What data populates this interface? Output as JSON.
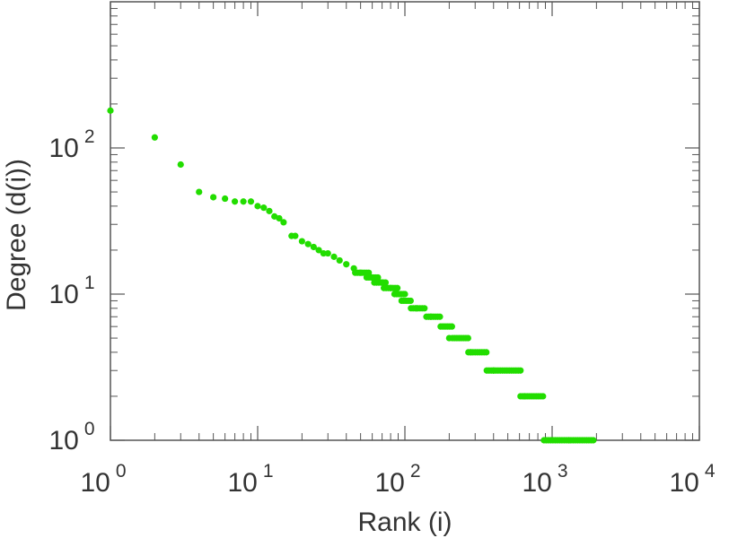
{
  "chart_data": {
    "type": "scatter",
    "xscale": "log",
    "yscale": "log",
    "xlim": [
      1,
      10000
    ],
    "ylim": [
      1,
      1000
    ],
    "xlabel": "Rank (i)",
    "ylabel": "Degree (d(i))",
    "x_ticks": [
      {
        "value": 1,
        "base": "10",
        "exp": "0"
      },
      {
        "value": 10,
        "base": "10",
        "exp": "1"
      },
      {
        "value": 100,
        "base": "10",
        "exp": "2"
      },
      {
        "value": 1000,
        "base": "10",
        "exp": "3"
      },
      {
        "value": 10000,
        "base": "10",
        "exp": "4"
      }
    ],
    "y_ticks": [
      {
        "value": 1,
        "base": "10",
        "exp": "0"
      },
      {
        "value": 10,
        "base": "10",
        "exp": "1"
      },
      {
        "value": 100,
        "base": "10",
        "exp": "2"
      }
    ],
    "marker_color": "#22dd00",
    "points": [
      [
        1,
        180
      ],
      [
        2,
        118
      ],
      [
        3,
        77
      ],
      [
        4,
        50
      ],
      [
        5,
        46
      ],
      [
        6,
        45
      ],
      [
        7,
        43
      ],
      [
        8,
        43
      ],
      [
        9,
        43
      ],
      [
        10,
        40
      ],
      [
        11,
        39
      ],
      [
        12,
        37
      ],
      [
        13,
        34
      ],
      [
        14,
        33
      ],
      [
        15,
        31
      ],
      [
        17,
        25
      ],
      [
        18,
        25
      ],
      [
        20,
        23
      ],
      [
        22,
        22
      ],
      [
        24,
        21
      ],
      [
        26,
        20
      ],
      [
        28,
        19
      ],
      [
        30,
        19
      ],
      [
        33,
        18
      ],
      [
        36,
        17
      ],
      [
        40,
        16
      ],
      [
        45,
        15
      ],
      [
        50,
        14
      ],
      [
        60,
        13
      ],
      [
        70,
        12
      ],
      [
        80,
        11
      ],
      [
        100,
        10
      ],
      [
        120,
        8
      ],
      [
        150,
        7
      ],
      [
        200,
        5
      ],
      [
        280,
        4
      ],
      [
        400,
        3
      ],
      [
        650,
        2
      ],
      [
        1300,
        1
      ]
    ],
    "runs": [
      {
        "y": 14,
        "x_from": 46,
        "x_to": 58
      },
      {
        "y": 13,
        "x_from": 55,
        "x_to": 66
      },
      {
        "y": 12,
        "x_from": 62,
        "x_to": 75
      },
      {
        "y": 11,
        "x_from": 72,
        "x_to": 90
      },
      {
        "y": 10,
        "x_from": 85,
        "x_to": 100
      },
      {
        "y": 9,
        "x_from": 95,
        "x_to": 110
      },
      {
        "y": 8,
        "x_from": 110,
        "x_to": 140
      },
      {
        "y": 7,
        "x_from": 140,
        "x_to": 175
      },
      {
        "y": 6,
        "x_from": 175,
        "x_to": 210
      },
      {
        "y": 5,
        "x_from": 210,
        "x_to": 270
      },
      {
        "y": 4,
        "x_from": 270,
        "x_to": 360
      },
      {
        "y": 3,
        "x_from": 360,
        "x_to": 620
      },
      {
        "y": 2,
        "x_from": 610,
        "x_to": 890
      },
      {
        "y": 1,
        "x_from": 880,
        "x_to": 1950
      }
    ]
  }
}
